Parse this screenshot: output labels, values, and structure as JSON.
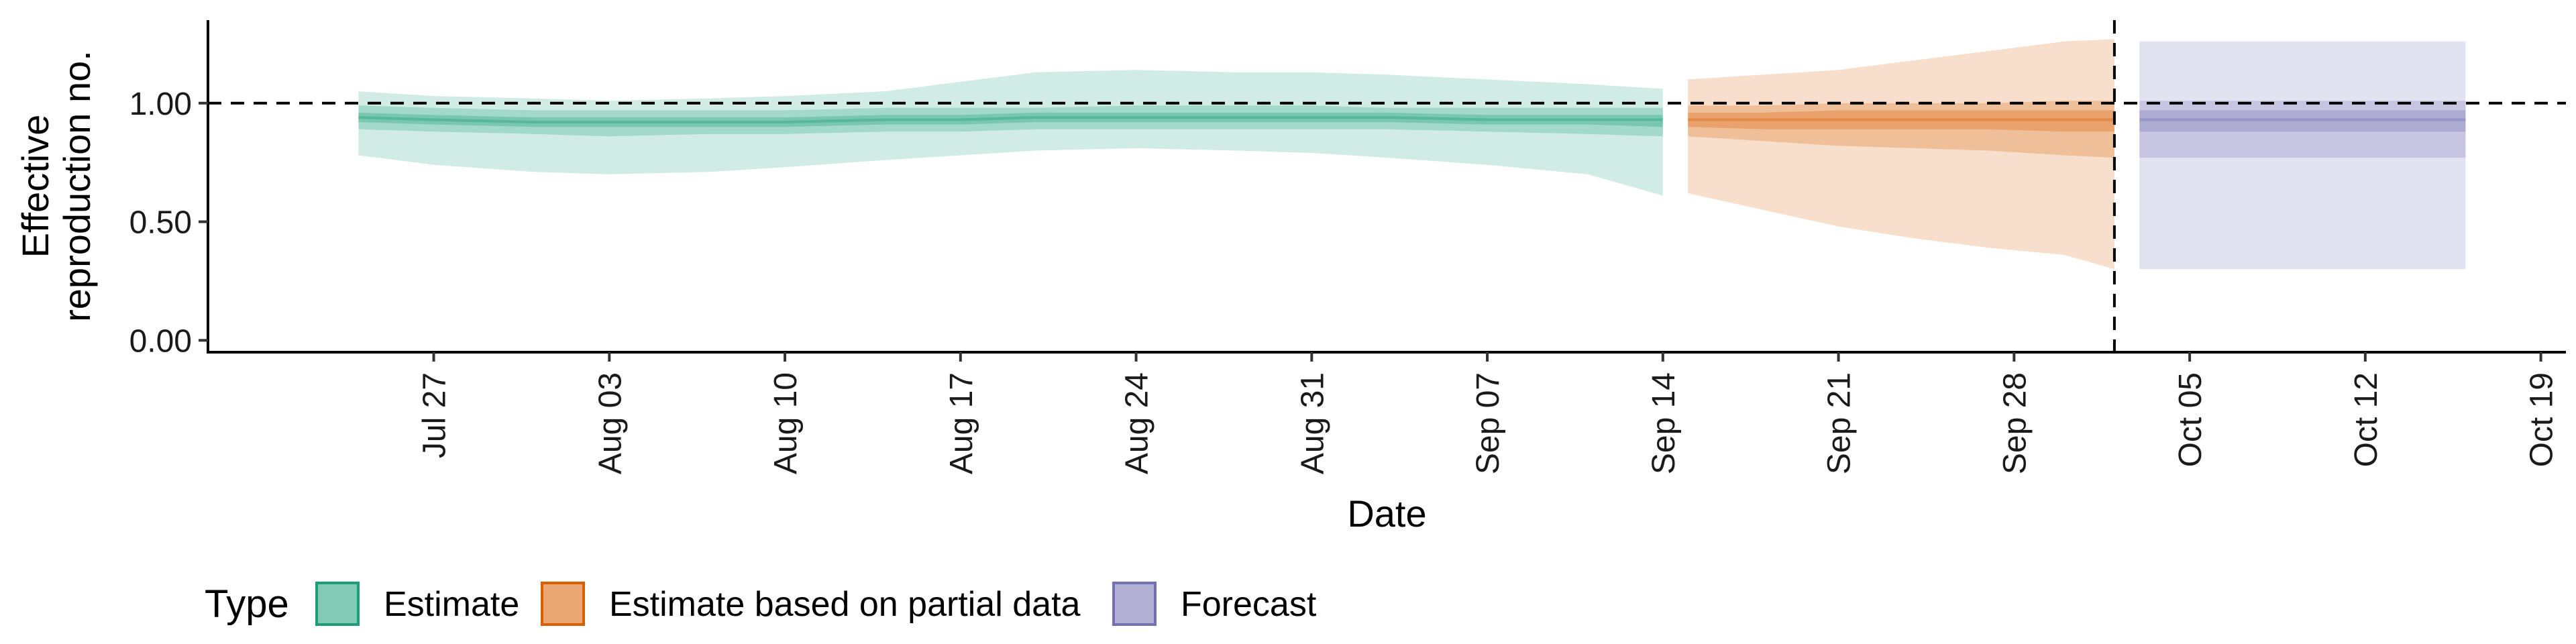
{
  "chart_data": {
    "type": "area",
    "xlabel": "Date",
    "ylabel_lines": [
      "Effective",
      "reproduction no."
    ],
    "x_range": [
      "2021-07-18",
      "2021-10-20"
    ],
    "y_range": [
      -0.05,
      1.35
    ],
    "yticks": [
      0.0,
      0.5,
      1.0
    ],
    "ytick_labels": [
      "0.00",
      "0.50",
      "1.00"
    ],
    "xticks": [
      "2021-07-27",
      "2021-08-03",
      "2021-08-10",
      "2021-08-17",
      "2021-08-24",
      "2021-08-31",
      "2021-09-07",
      "2021-09-14",
      "2021-09-21",
      "2021-09-28",
      "2021-10-05",
      "2021-10-12",
      "2021-10-19"
    ],
    "xtick_labels": [
      "Jul 27",
      "Aug 03",
      "Aug 10",
      "Aug 17",
      "Aug 24",
      "Aug 31",
      "Sep 07",
      "Sep 14",
      "Sep 21",
      "Sep 28",
      "Oct 05",
      "Oct 12",
      "Oct 19"
    ],
    "reference_line": {
      "y": 1.0,
      "style": "dashed"
    },
    "vertical_line": {
      "x": "2021-10-02",
      "style": "dashed"
    },
    "legend": {
      "title": "Type",
      "position": "bottom",
      "items": [
        {
          "label": "Estimate",
          "fill": "#1b9e77",
          "stroke": "#1b9e77"
        },
        {
          "label": "Estimate based on partial data",
          "fill": "#d95f02",
          "stroke": "#d95f02"
        },
        {
          "label": "Forecast",
          "fill": "#7570b3",
          "stroke": "#7570b3"
        }
      ]
    },
    "series": [
      {
        "name": "Estimate",
        "color": "#1b9e77",
        "x": [
          "2021-07-24",
          "2021-07-27",
          "2021-07-31",
          "2021-08-03",
          "2021-08-07",
          "2021-08-10",
          "2021-08-14",
          "2021-08-17",
          "2021-08-20",
          "2021-08-24",
          "2021-08-28",
          "2021-08-31",
          "2021-09-03",
          "2021-09-07",
          "2021-09-11",
          "2021-09-14"
        ],
        "median": [
          0.94,
          0.93,
          0.92,
          0.92,
          0.92,
          0.92,
          0.93,
          0.93,
          0.94,
          0.94,
          0.94,
          0.94,
          0.94,
          0.93,
          0.93,
          0.93
        ],
        "lower_90": [
          0.78,
          0.74,
          0.71,
          0.7,
          0.71,
          0.73,
          0.76,
          0.78,
          0.8,
          0.81,
          0.8,
          0.79,
          0.77,
          0.74,
          0.7,
          0.61
        ],
        "upper_90": [
          1.05,
          1.03,
          1.02,
          1.01,
          1.02,
          1.03,
          1.05,
          1.09,
          1.13,
          1.14,
          1.13,
          1.13,
          1.12,
          1.1,
          1.08,
          1.06
        ],
        "lower_50": [
          0.89,
          0.88,
          0.87,
          0.86,
          0.87,
          0.87,
          0.88,
          0.88,
          0.89,
          0.89,
          0.89,
          0.89,
          0.89,
          0.88,
          0.87,
          0.86
        ],
        "upper_50": [
          0.99,
          0.98,
          0.97,
          0.97,
          0.97,
          0.97,
          0.98,
          0.98,
          0.98,
          0.99,
          0.99,
          0.99,
          0.98,
          0.98,
          0.98,
          0.98
        ],
        "lower_20": [
          0.92,
          0.91,
          0.9,
          0.9,
          0.9,
          0.9,
          0.91,
          0.91,
          0.92,
          0.92,
          0.92,
          0.92,
          0.92,
          0.91,
          0.91,
          0.9
        ],
        "upper_20": [
          0.96,
          0.95,
          0.94,
          0.94,
          0.94,
          0.94,
          0.95,
          0.95,
          0.96,
          0.96,
          0.96,
          0.96,
          0.96,
          0.95,
          0.95,
          0.95
        ]
      },
      {
        "name": "Estimate based on partial data",
        "color": "#d95f02",
        "x": [
          "2021-09-15",
          "2021-09-18",
          "2021-09-21",
          "2021-09-24",
          "2021-09-27",
          "2021-09-30",
          "2021-10-02"
        ],
        "median": [
          0.93,
          0.93,
          0.93,
          0.93,
          0.93,
          0.93,
          0.93
        ],
        "lower_90": [
          0.62,
          0.55,
          0.48,
          0.43,
          0.39,
          0.36,
          0.3
        ],
        "upper_90": [
          1.1,
          1.12,
          1.14,
          1.18,
          1.22,
          1.26,
          1.27
        ],
        "lower_50": [
          0.86,
          0.84,
          0.82,
          0.81,
          0.8,
          0.78,
          0.77
        ],
        "upper_50": [
          0.99,
          0.99,
          1.0,
          1.0,
          1.0,
          1.01,
          1.01
        ],
        "lower_20": [
          0.9,
          0.89,
          0.89,
          0.89,
          0.89,
          0.88,
          0.88
        ],
        "upper_20": [
          0.96,
          0.96,
          0.97,
          0.97,
          0.97,
          0.97,
          0.97
        ]
      },
      {
        "name": "Forecast",
        "color": "#7570b3",
        "x": [
          "2021-10-03",
          "2021-10-16"
        ],
        "median": [
          0.93,
          0.93
        ],
        "lower_90": [
          0.3,
          0.3
        ],
        "upper_90": [
          1.26,
          1.26
        ],
        "lower_50": [
          0.77,
          0.77
        ],
        "upper_50": [
          1.01,
          1.01
        ],
        "lower_20": [
          0.88,
          0.88
        ],
        "upper_20": [
          0.97,
          0.97
        ]
      }
    ]
  }
}
